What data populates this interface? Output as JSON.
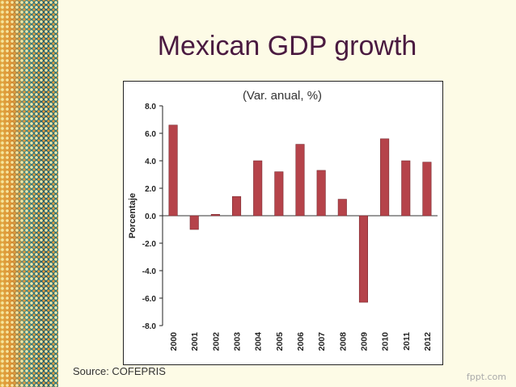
{
  "slide": {
    "title": "Mexican GDP growth",
    "source": "Source: COFEPRIS",
    "watermark": "fppt.com"
  },
  "colors": {
    "bar": "#b5434a",
    "bar_edge": "#7a2a30",
    "title": "#4a1a40"
  },
  "chart_data": {
    "type": "bar",
    "title": "(Var. anual, %)",
    "xlabel": "",
    "ylabel": "Porcentaje",
    "categories": [
      "2000",
      "2001",
      "2002",
      "2003",
      "2004",
      "2005",
      "2006",
      "2007",
      "2008",
      "2009",
      "2010",
      "2011",
      "2012"
    ],
    "values": [
      6.6,
      -1.0,
      0.1,
      1.4,
      4.0,
      3.2,
      5.2,
      3.3,
      1.2,
      -6.3,
      5.6,
      4.0,
      3.9
    ],
    "ylim": [
      -8.0,
      8.0
    ],
    "yticks": [
      "8.0",
      "6.0",
      "4.0",
      "2.0",
      "0.0",
      "-2.0",
      "-4.0",
      "-6.0",
      "-8.0"
    ],
    "grid": false,
    "legend": "none"
  }
}
